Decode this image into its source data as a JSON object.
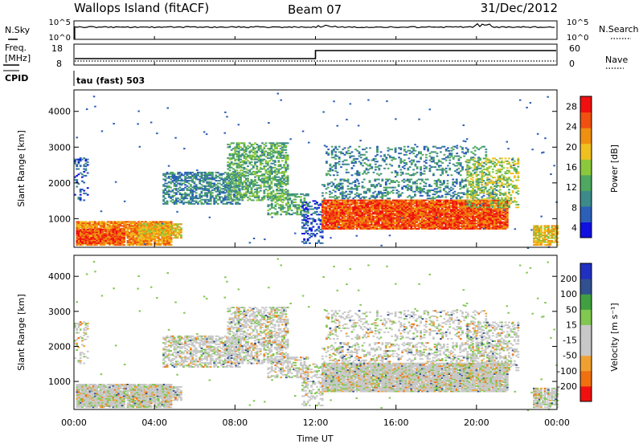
{
  "header": {
    "station": "Wallops Island (fitACF)",
    "beam": "Beam 07",
    "date": "31/Dec/2012"
  },
  "top_panel": {
    "sky_label": "N.Sky",
    "search_label": "N.Search",
    "freq_label_1": "Freq.",
    "freq_label_2": "[MHz]",
    "nave_label": "Nave",
    "cpid_label": "CPID",
    "cpid_value": "tau (fast) 503",
    "sky_ticks": [
      "10^5",
      "10^0"
    ],
    "search_ticks": [
      "10^5",
      "10^0"
    ],
    "freq_ticks": [
      "18",
      "8"
    ],
    "nave_ticks": [
      "60",
      "0"
    ],
    "freq_step_hour": 12.0
  },
  "colors": {
    "power": [
      "#1010e0",
      "#2b5fb8",
      "#3d8a8a",
      "#4fa860",
      "#8cc83c",
      "#f0c020",
      "#f09010",
      "#f05010",
      "#f01010"
    ],
    "velocity": [
      "#f01010",
      "#f07010",
      "#f0a030",
      "#c8c8c8",
      "#c8c8c8",
      "#80c850",
      "#40a040",
      "#305090",
      "#2030c0"
    ]
  },
  "chart_data": [
    {
      "type": "heatmap",
      "name": "power",
      "xlabel": "Time UT",
      "ylabel": "Slant Range [km]",
      "cbar_label": "Power [dB]",
      "xlim": [
        0,
        24
      ],
      "ylim": [
        200,
        4600
      ],
      "xticks": [
        "00:00",
        "04:00",
        "08:00",
        "12:00",
        "16:00",
        "20:00",
        "00:00"
      ],
      "yticks": [
        1000,
        2000,
        3000,
        4000
      ],
      "cbar_ticks": [
        "4",
        "8",
        "12",
        "16",
        "20",
        "24",
        "28"
      ],
      "cbar_range": [
        2,
        30
      ]
    },
    {
      "type": "heatmap",
      "name": "velocity",
      "xlabel": "Time UT",
      "ylabel": "Slant Range [km]",
      "cbar_label": "Velocity [m s⁻¹]",
      "xlim": [
        0,
        24
      ],
      "ylim": [
        200,
        4600
      ],
      "xticks": [
        "00:00",
        "04:00",
        "08:00",
        "12:00",
        "16:00",
        "20:00",
        "00:00"
      ],
      "yticks": [
        1000,
        2000,
        3000,
        4000
      ],
      "cbar_ticks": [
        "200",
        "100",
        "50",
        "15",
        "-15",
        "-50",
        "-100",
        "-200"
      ]
    }
  ]
}
